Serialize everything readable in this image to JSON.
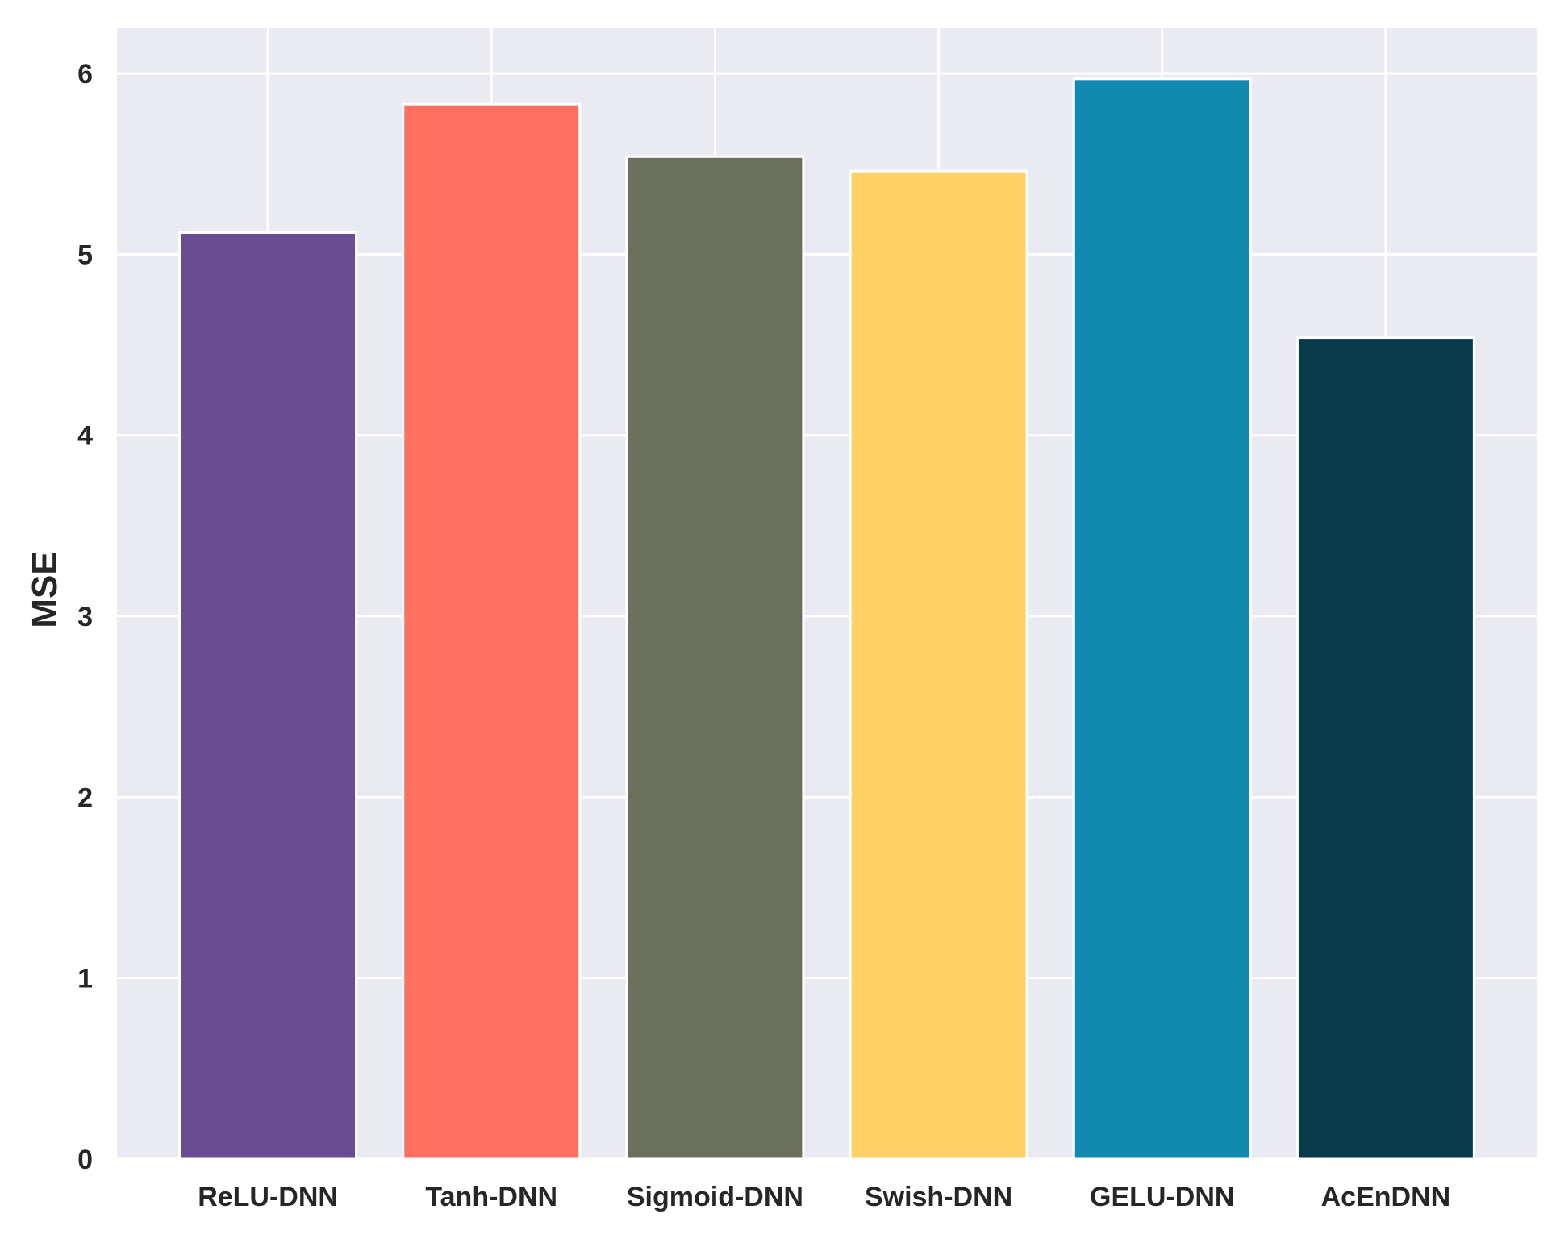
{
  "chart_data": {
    "type": "bar",
    "title": "",
    "xlabel": "",
    "ylabel": "MSE",
    "ylim": [
      0,
      6.25
    ],
    "yticks": [
      0,
      1,
      2,
      3,
      4,
      5,
      6
    ],
    "grid": true,
    "categories": [
      "ReLU-DNN",
      "Tanh-DNN",
      "Sigmoid-DNN",
      "Swish-DNN",
      "GELU-DNN",
      "AcEnDNN"
    ],
    "values": [
      5.12,
      5.83,
      5.54,
      5.46,
      5.97,
      4.54
    ],
    "colors": [
      "#6a4c93",
      "#ff6f61",
      "#6b705c",
      "#ffd166",
      "#118ab2",
      "#073b4c"
    ],
    "background_color": "#eaeaf2",
    "grid_color": "#ffffff"
  }
}
